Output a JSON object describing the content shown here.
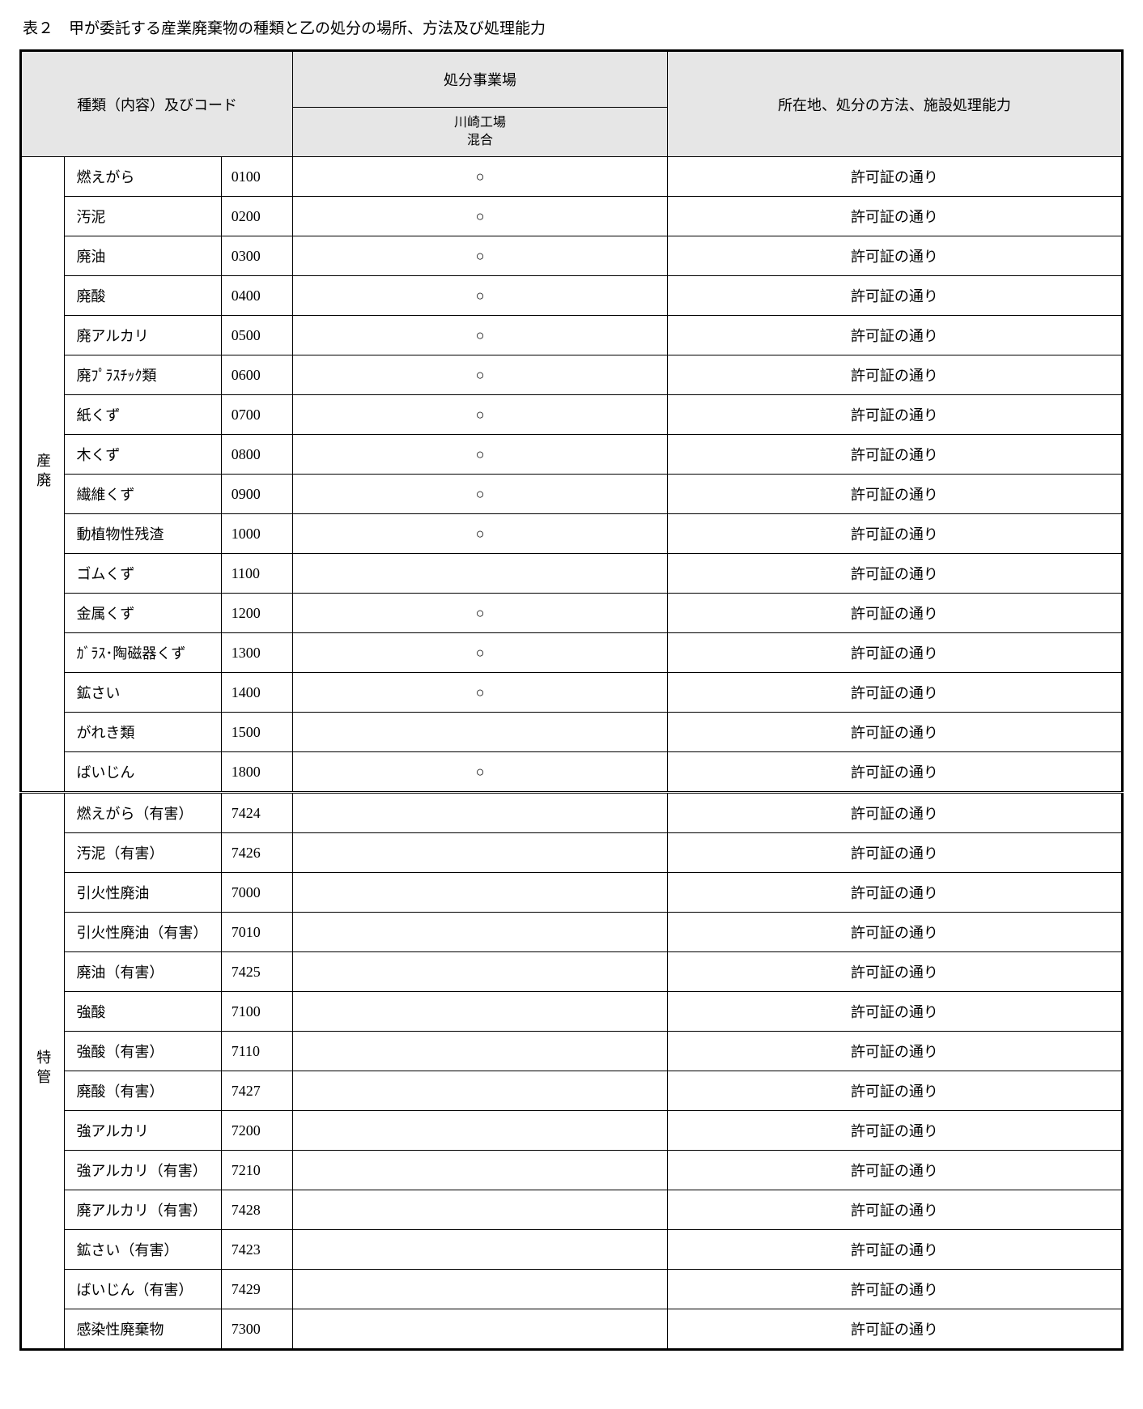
{
  "title": "表２　甲が委託する産業廃棄物の種類と乙の処分の場所、方法及び処理能力",
  "headers": {
    "typeAndCode": "種類（内容）及びコード",
    "site": "処分事業場",
    "siteSub1": "川崎工場",
    "siteSub2": "混合",
    "location": "所在地、処分の方法、施設処理能力"
  },
  "groups": [
    {
      "label": "産廃",
      "rows": [
        {
          "name": "燃えがら",
          "code": "0100",
          "mark": "○",
          "loc": "許可証の通り"
        },
        {
          "name": "汚泥",
          "code": "0200",
          "mark": "○",
          "loc": "許可証の通り"
        },
        {
          "name": "廃油",
          "code": "0300",
          "mark": "○",
          "loc": "許可証の通り"
        },
        {
          "name": "廃酸",
          "code": "0400",
          "mark": "○",
          "loc": "許可証の通り"
        },
        {
          "name": "廃アルカリ",
          "code": "0500",
          "mark": "○",
          "loc": "許可証の通り"
        },
        {
          "name": "廃ﾌﾟﾗｽﾁｯｸ類",
          "code": "0600",
          "mark": "○",
          "loc": "許可証の通り"
        },
        {
          "name": "紙くず",
          "code": "0700",
          "mark": "○",
          "loc": "許可証の通り"
        },
        {
          "name": "木くず",
          "code": "0800",
          "mark": "○",
          "loc": "許可証の通り"
        },
        {
          "name": "繊維くず",
          "code": "0900",
          "mark": "○",
          "loc": "許可証の通り"
        },
        {
          "name": "動植物性残渣",
          "code": "1000",
          "mark": "○",
          "loc": "許可証の通り"
        },
        {
          "name": "ゴムくず",
          "code": "1100",
          "mark": "",
          "loc": "許可証の通り"
        },
        {
          "name": "金属くず",
          "code": "1200",
          "mark": "○",
          "loc": "許可証の通り"
        },
        {
          "name": "ｶﾞﾗｽ･陶磁器くず",
          "code": "1300",
          "mark": "○",
          "loc": "許可証の通り"
        },
        {
          "name": "鉱さい",
          "code": "1400",
          "mark": "○",
          "loc": "許可証の通り"
        },
        {
          "name": "がれき類",
          "code": "1500",
          "mark": "",
          "loc": "許可証の通り"
        },
        {
          "name": "ばいじん",
          "code": "1800",
          "mark": "○",
          "loc": "許可証の通り"
        }
      ]
    },
    {
      "label": "特管",
      "rows": [
        {
          "name": "燃えがら（有害）",
          "code": "7424",
          "mark": "",
          "loc": "許可証の通り"
        },
        {
          "name": "汚泥（有害）",
          "code": "7426",
          "mark": "",
          "loc": "許可証の通り"
        },
        {
          "name": "引火性廃油",
          "code": "7000",
          "mark": "",
          "loc": "許可証の通り"
        },
        {
          "name": "引火性廃油（有害）",
          "code": "7010",
          "mark": "",
          "loc": "許可証の通り"
        },
        {
          "name": "廃油（有害）",
          "code": "7425",
          "mark": "",
          "loc": "許可証の通り"
        },
        {
          "name": "強酸",
          "code": "7100",
          "mark": "",
          "loc": "許可証の通り"
        },
        {
          "name": "強酸（有害）",
          "code": "7110",
          "mark": "",
          "loc": "許可証の通り"
        },
        {
          "name": "廃酸（有害）",
          "code": "7427",
          "mark": "",
          "loc": "許可証の通り"
        },
        {
          "name": "強アルカリ",
          "code": "7200",
          "mark": "",
          "loc": "許可証の通り"
        },
        {
          "name": "強アルカリ（有害）",
          "code": "7210",
          "mark": "",
          "loc": "許可証の通り"
        },
        {
          "name": "廃アルカリ（有害）",
          "code": "7428",
          "mark": "",
          "loc": "許可証の通り"
        },
        {
          "name": "鉱さい（有害）",
          "code": "7423",
          "mark": "",
          "loc": "許可証の通り"
        },
        {
          "name": "ばいじん（有害）",
          "code": "7429",
          "mark": "",
          "loc": "許可証の通り"
        },
        {
          "name": "感染性廃棄物",
          "code": "7300",
          "mark": "",
          "loc": "許可証の通り"
        }
      ]
    }
  ]
}
